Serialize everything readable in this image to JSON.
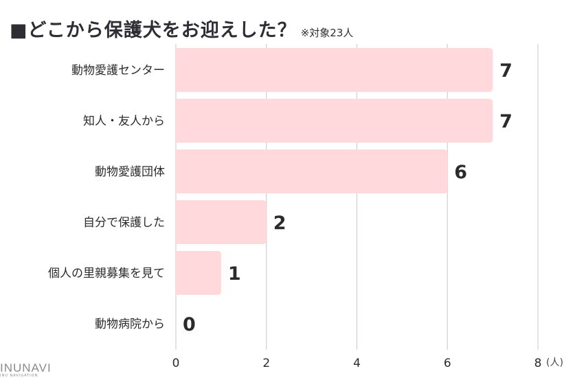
{
  "title": "■どこから保護犬をお迎えした？",
  "note": "※対象23人",
  "logo": {
    "main": "INUNAVI",
    "sub": "INU NAVIGATION"
  },
  "chart_data": {
    "type": "bar",
    "orientation": "horizontal",
    "categories": [
      "動物愛護センター",
      "知人・友人から",
      "動物愛護団体",
      "自分で保護した",
      "個人の里親募集を見て",
      "動物病院から"
    ],
    "values": [
      7,
      7,
      6,
      2,
      1,
      0
    ],
    "xlim": [
      0,
      8
    ],
    "xticks": [
      0,
      2,
      4,
      6,
      8
    ],
    "xunit": "(人)",
    "grid": true,
    "bar_color": "#ffd9dc",
    "grid_color": "#d0d0d0"
  }
}
